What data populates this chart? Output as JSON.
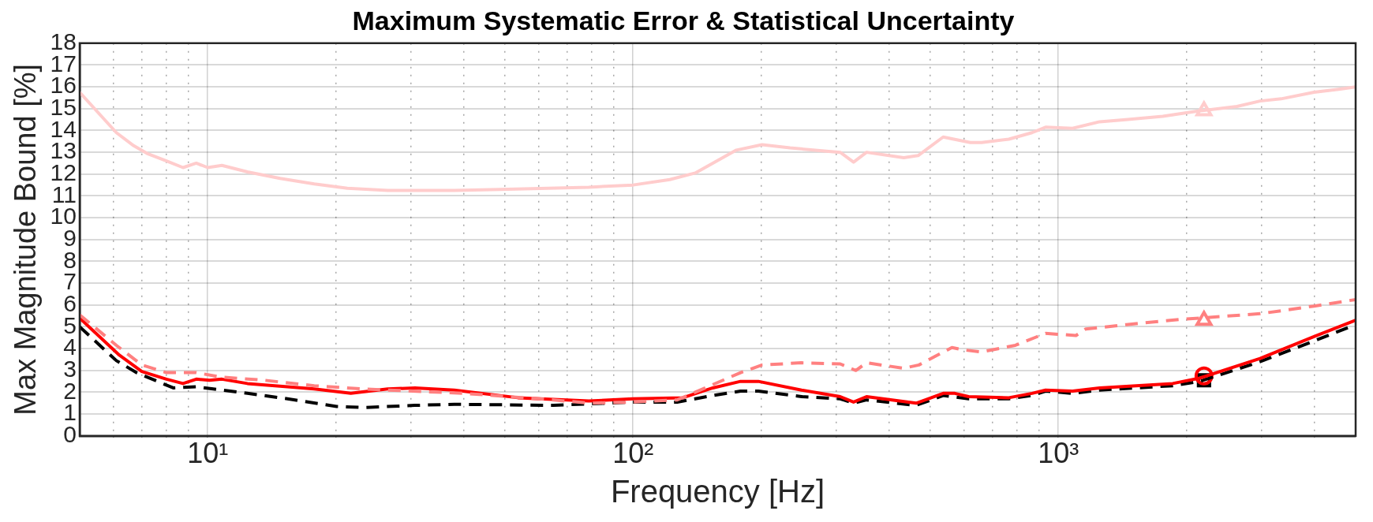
{
  "chart_data": {
    "type": "line",
    "title": "Maximum Systematic Error & Statistical Uncertainty",
    "xlabel": "Frequency [Hz]",
    "ylabel": "Max Magnitude Bound [%]",
    "log": "x",
    "grid": true,
    "legend": false,
    "xlim": [
      5,
      5000
    ],
    "ylim": [
      0,
      18
    ],
    "xticks": [
      {
        "value": 6,
        "label": null
      },
      {
        "value": 7,
        "label": null
      },
      {
        "value": 8,
        "label": null
      },
      {
        "value": 9,
        "label": null
      },
      {
        "value": 10,
        "label": "10¹"
      },
      {
        "value": 20,
        "label": null
      },
      {
        "value": 30,
        "label": null
      },
      {
        "value": 40,
        "label": null
      },
      {
        "value": 50,
        "label": null
      },
      {
        "value": 60,
        "label": null
      },
      {
        "value": 70,
        "label": null
      },
      {
        "value": 80,
        "label": null
      },
      {
        "value": 90,
        "label": null
      },
      {
        "value": 100,
        "label": "10²"
      },
      {
        "value": 200,
        "label": null
      },
      {
        "value": 300,
        "label": null
      },
      {
        "value": 400,
        "label": null
      },
      {
        "value": 500,
        "label": null
      },
      {
        "value": 600,
        "label": null
      },
      {
        "value": 700,
        "label": null
      },
      {
        "value": 800,
        "label": null
      },
      {
        "value": 900,
        "label": null
      },
      {
        "value": 1000,
        "label": "10³"
      },
      {
        "value": 2000,
        "label": null
      },
      {
        "value": 3000,
        "label": null
      },
      {
        "value": 4000,
        "label": null
      }
    ],
    "yticks": [
      0,
      1,
      2,
      3,
      4,
      5,
      6,
      7,
      8,
      9,
      10,
      11,
      12,
      13,
      14,
      15,
      16,
      17,
      18
    ],
    "series": [
      {
        "color": "#ffcccc",
        "line_style": "solid",
        "x": [
          5,
          6.1,
          6.7,
          7.2,
          8,
          8.75,
          9.4,
          10,
          10.8,
          12.4,
          14.8,
          17.8,
          21.3,
          26.5,
          38,
          48.6,
          78.7,
          100,
          122,
          140,
          175,
          201,
          234,
          307,
          330,
          354,
          433,
          468,
          536,
          621,
          660,
          765,
          867,
          933,
          1080,
          1250,
          1440,
          1760,
          2150,
          2630,
          2980,
          3340,
          3990,
          4600,
          5000
        ],
        "values": [
          15.75,
          13.9,
          13.3,
          12.95,
          12.6,
          12.3,
          12.5,
          12.3,
          12.4,
          12.1,
          11.8,
          11.55,
          11.35,
          11.25,
          11.25,
          11.3,
          11.4,
          11.5,
          11.75,
          12.05,
          13.1,
          13.35,
          13.2,
          13.0,
          12.55,
          13.0,
          12.75,
          12.85,
          13.7,
          13.45,
          13.45,
          13.6,
          13.9,
          14.15,
          14.1,
          14.4,
          14.5,
          14.65,
          14.9,
          15.1,
          15.35,
          15.45,
          15.75,
          15.9,
          16.0
        ]
      },
      {
        "color": "#ff8080",
        "line_style": "dashed",
        "x": [
          5,
          6.1,
          7,
          8,
          9.4,
          10.7,
          13.6,
          17.8,
          23.3,
          40,
          65,
          78.7,
          100,
          127,
          154,
          179,
          201,
          249,
          307,
          334,
          354,
          433,
          470,
          562,
          594,
          660,
          792,
          933,
          1100,
          1160,
          1445,
          1963,
          2150,
          2980,
          3990,
          5000
        ],
        "values": [
          5.55,
          4.15,
          3.25,
          2.9,
          2.9,
          2.7,
          2.55,
          2.3,
          2.15,
          1.95,
          1.65,
          1.5,
          1.55,
          1.65,
          2.35,
          2.9,
          3.25,
          3.35,
          3.3,
          3.0,
          3.35,
          3.1,
          3.25,
          4.05,
          3.95,
          3.85,
          4.15,
          4.7,
          4.6,
          4.9,
          5.1,
          5.35,
          5.4,
          5.6,
          5.95,
          6.25
        ]
      },
      {
        "color": "#ff0000",
        "line_style": "solid",
        "x": [
          5,
          6.2,
          7,
          8,
          8.75,
          9.4,
          10.1,
          10.8,
          12.4,
          15.4,
          17.8,
          21.7,
          26.5,
          30.7,
          38,
          53.6,
          78.7,
          100,
          131,
          154,
          179,
          197,
          249,
          307,
          330,
          354,
          463,
          494,
          536,
          571,
          615,
          765,
          867,
          933,
          1080,
          1250,
          1857,
          2150,
          2980,
          3990,
          5000
        ],
        "values": [
          5.4,
          3.7,
          2.95,
          2.6,
          2.4,
          2.6,
          2.55,
          2.6,
          2.4,
          2.25,
          2.15,
          1.95,
          2.15,
          2.2,
          2.1,
          1.75,
          1.6,
          1.7,
          1.75,
          2.2,
          2.5,
          2.5,
          2.1,
          1.8,
          1.55,
          1.8,
          1.5,
          1.7,
          1.95,
          1.95,
          1.8,
          1.75,
          1.95,
          2.1,
          2.05,
          2.2,
          2.4,
          2.65,
          3.55,
          4.55,
          5.3
        ]
      },
      {
        "color": "#000000",
        "line_style": "dashed",
        "x": [
          5,
          6.1,
          6.8,
          8.3,
          9.4,
          10.3,
          12.4,
          15.4,
          20.1,
          23.3,
          30.7,
          38,
          65,
          100,
          127,
          154,
          179,
          197,
          249,
          307,
          330,
          354,
          463,
          536,
          615,
          765,
          867,
          933,
          1080,
          1250,
          1857,
          2150,
          2980,
          3990,
          5000
        ],
        "values": [
          5.0,
          3.45,
          2.9,
          2.2,
          2.25,
          2.15,
          1.95,
          1.7,
          1.35,
          1.3,
          1.4,
          1.45,
          1.4,
          1.55,
          1.55,
          1.85,
          2.05,
          2.05,
          1.8,
          1.7,
          1.5,
          1.65,
          1.4,
          1.85,
          1.7,
          1.7,
          1.85,
          2.05,
          1.95,
          2.1,
          2.3,
          2.5,
          3.4,
          4.35,
          5.1
        ]
      },
      {
        "type": "scatter",
        "color": "#ffcccc",
        "marker": "triangle",
        "x": [
          2200
        ],
        "values": [
          14.9
        ]
      },
      {
        "type": "scatter",
        "color": "#ff8080",
        "marker": "triangle",
        "x": [
          2200
        ],
        "values": [
          5.3
        ]
      },
      {
        "type": "scatter",
        "color": "#ff0000",
        "marker": "circle",
        "x": [
          2200
        ],
        "values": [
          2.75
        ]
      },
      {
        "type": "scatter",
        "color": "#000000",
        "marker": "square",
        "x": [
          2200
        ],
        "values": [
          2.55
        ]
      }
    ]
  }
}
